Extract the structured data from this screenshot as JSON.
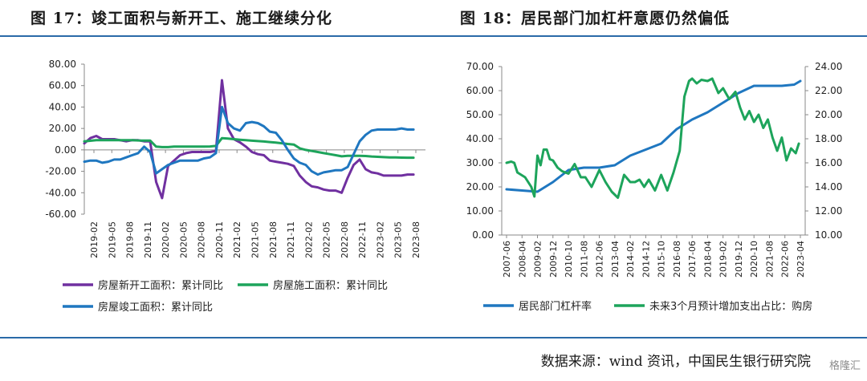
{
  "figures": {
    "left_title": "图 17：竣工面积与新开工、施工继续分化",
    "right_title": "图 18：居民部门加杠杆意愿仍然偏低"
  },
  "source": "数据来源：wind 资讯，中国民生银行研究院",
  "watermark": "格隆汇",
  "colors": {
    "purple": "#7030a0",
    "green": "#1da45b",
    "blue": "#1f77c0",
    "rule": "#2a6aa8",
    "axis": "#888888"
  },
  "chart_data": [
    {
      "type": "line",
      "title": "",
      "y_ticks": [
        "80.00",
        "60.00",
        "40.00",
        "20.00",
        "0.00",
        "-20.00",
        "-40.00",
        "-60.00"
      ],
      "ylim": [
        -60,
        80
      ],
      "x_labels": [
        "2019-02",
        "2019-05",
        "2019-08",
        "2019-11",
        "2020-02",
        "2020-05",
        "2020-08",
        "2020-11",
        "2021-02",
        "2021-05",
        "2021-08",
        "2021-11",
        "2022-02",
        "2022-05",
        "2022-08",
        "2022-11",
        "2023-02",
        "2023-05",
        "2023-08"
      ],
      "x_range": [
        0,
        57
      ],
      "legend_layout": "bottom",
      "series": [
        {
          "name": "房屋新开工面积：累计同比",
          "color": "purple",
          "x": [
            0,
            1,
            2,
            3,
            4,
            5,
            6,
            7,
            8,
            9,
            10,
            11,
            12,
            13,
            14,
            15,
            16,
            17,
            18,
            19,
            20,
            21,
            22,
            23,
            24,
            25,
            26,
            27,
            28,
            29,
            30,
            31,
            32,
            33,
            34,
            35,
            36,
            37,
            38,
            39,
            40,
            41,
            42,
            43,
            44,
            45,
            46,
            47,
            48,
            49,
            50,
            51,
            52,
            53,
            54,
            55
          ],
          "y": [
            6,
            11,
            13,
            10,
            10,
            10,
            9,
            8,
            9,
            9,
            8,
            8,
            -30,
            -45,
            -15,
            -10,
            -5,
            -3,
            -2,
            -2,
            -2,
            -2,
            -1,
            65,
            20,
            10,
            7,
            3,
            -2,
            -4,
            -5,
            -10,
            -11,
            -12,
            -13,
            -15,
            -24,
            -30,
            -34,
            -35,
            -37,
            -38,
            -38,
            -40,
            -26,
            -14,
            -9,
            -18,
            -21,
            -22,
            -24,
            -24,
            -24,
            -24,
            -23,
            -23
          ]
        },
        {
          "name": "房屋施工面积：累计同比",
          "color": "green",
          "x": [
            0,
            1,
            2,
            3,
            4,
            5,
            6,
            7,
            8,
            9,
            10,
            11,
            12,
            13,
            14,
            15,
            16,
            17,
            18,
            19,
            20,
            21,
            22,
            23,
            24,
            25,
            26,
            27,
            28,
            29,
            30,
            31,
            32,
            33,
            34,
            35,
            36,
            37,
            38,
            39,
            40,
            41,
            42,
            43,
            44,
            45,
            46,
            47,
            48,
            49,
            50,
            51,
            52,
            53,
            54,
            55
          ],
          "y": [
            8,
            8.5,
            9,
            9,
            9,
            9,
            9,
            9,
            9,
            8.8,
            8.7,
            8.7,
            3,
            2.6,
            2.6,
            3,
            3,
            3,
            3,
            3,
            3,
            3.2,
            3.7,
            11,
            10.5,
            10,
            9.5,
            9,
            8.6,
            8.2,
            7.8,
            7.3,
            6.8,
            6.2,
            5.5,
            5,
            1.5,
            0,
            -1,
            -2,
            -3,
            -4,
            -5,
            -6,
            -5.5,
            -5.5,
            -5.6,
            -5.7,
            -6.2,
            -6.5,
            -6.8,
            -7,
            -7.1,
            -7.2,
            -7.3,
            -7.3
          ]
        },
        {
          "name": "房屋竣工面积：累计同比",
          "color": "blue",
          "x": [
            0,
            1,
            2,
            3,
            4,
            5,
            6,
            7,
            8,
            9,
            10,
            11,
            12,
            13,
            14,
            15,
            16,
            17,
            18,
            19,
            20,
            21,
            22,
            23,
            24,
            25,
            26,
            27,
            28,
            29,
            30,
            31,
            32,
            33,
            34,
            35,
            36,
            37,
            38,
            39,
            40,
            41,
            42,
            43,
            44,
            45,
            46,
            47,
            48,
            49,
            50,
            51,
            52,
            53,
            54,
            55
          ],
          "y": [
            -11,
            -10,
            -10,
            -12,
            -11,
            -9,
            -9,
            -7,
            -5,
            -3,
            3,
            -2,
            -22,
            -18,
            -14,
            -12,
            -10,
            -10,
            -10,
            -10,
            -8,
            -7,
            -3,
            40,
            25,
            20,
            18,
            25,
            26,
            25,
            22,
            17,
            16,
            9,
            0,
            -8,
            -12,
            -14,
            -20,
            -23,
            -21,
            -20,
            -19,
            -19,
            -16,
            -4,
            8,
            14,
            18,
            19,
            19,
            19,
            19,
            20,
            19,
            19
          ]
        }
      ]
    },
    {
      "type": "line",
      "title": "",
      "y_ticks_left": [
        "70.00",
        "60.00",
        "50.00",
        "40.00",
        "30.00",
        "20.00",
        "10.00",
        "0.00"
      ],
      "ylim_left": [
        0,
        70
      ],
      "y_ticks_right": [
        "24.00",
        "22.00",
        "20.00",
        "18.00",
        "16.00",
        "14.00",
        "12.00",
        "10.00"
      ],
      "ylim_right": [
        10,
        24
      ],
      "x_labels": [
        "2007-06",
        "2008-04",
        "2009-02",
        "2009-12",
        "2010-10",
        "2011-08",
        "2012-06",
        "2013-04",
        "2014-02",
        "2014-12",
        "2015-10",
        "2016-08",
        "2017-06",
        "2018-04",
        "2019-02",
        "2019-12",
        "2020-10",
        "2021-08",
        "2022-06",
        "2023-04"
      ],
      "x_range": [
        0,
        19
      ],
      "legend_layout": "bottom",
      "series": [
        {
          "name": "居民部门杠杆率",
          "color": "blue",
          "axis": "left",
          "x": [
            0,
            1,
            2,
            3,
            4,
            5,
            6,
            7,
            8,
            9,
            10,
            11,
            12,
            13,
            14,
            15,
            16,
            17,
            17.8,
            18.6,
            19
          ],
          "y": [
            19,
            18.5,
            18,
            22,
            27,
            28,
            28,
            29,
            33,
            35.5,
            38,
            44,
            48,
            51,
            55,
            59,
            62,
            62,
            62,
            62.5,
            64
          ]
        },
        {
          "name": "未来3个月预计增加支出占比：购房",
          "color": "green",
          "axis": "right",
          "x": [
            0,
            0.3,
            0.5,
            0.7,
            1.2,
            1.6,
            1.8,
            2.0,
            2.2,
            2.4,
            2.6,
            2.8,
            3.0,
            3.3,
            3.6,
            4.0,
            4.4,
            4.8,
            5.1,
            5.5,
            6.0,
            6.4,
            6.8,
            7.2,
            7.6,
            8.0,
            8.3,
            8.6,
            8.9,
            9.2,
            9.6,
            10.0,
            10.4,
            10.8,
            11.2,
            11.5,
            11.8,
            12.0,
            12.3,
            12.6,
            13.0,
            13.3,
            13.7,
            14.0,
            14.4,
            14.8,
            15.1,
            15.4,
            15.7,
            16.0,
            16.3,
            16.6,
            16.9,
            17.2,
            17.5,
            17.8,
            18.1,
            18.4,
            18.7,
            18.9
          ],
          "y": [
            16,
            16.1,
            16,
            15.2,
            14.8,
            14,
            13.2,
            16.6,
            15.8,
            17.1,
            17.1,
            16.3,
            16.2,
            15.6,
            15.3,
            15.1,
            15.9,
            14.8,
            14.8,
            14.0,
            15.4,
            14.4,
            13.6,
            13.1,
            15.0,
            14.4,
            14.4,
            14.6,
            14.0,
            14.6,
            13.7,
            15.0,
            13.7,
            15.2,
            17.0,
            21.5,
            22.8,
            23.0,
            22.6,
            22.9,
            22.8,
            23.0,
            21.8,
            22.2,
            21.3,
            21.9,
            20.6,
            19.6,
            20.3,
            19.4,
            20.0,
            18.9,
            19.6,
            18.1,
            17.0,
            18.1,
            16.2,
            17.2,
            16.8,
            17.6
          ]
        }
      ]
    }
  ]
}
